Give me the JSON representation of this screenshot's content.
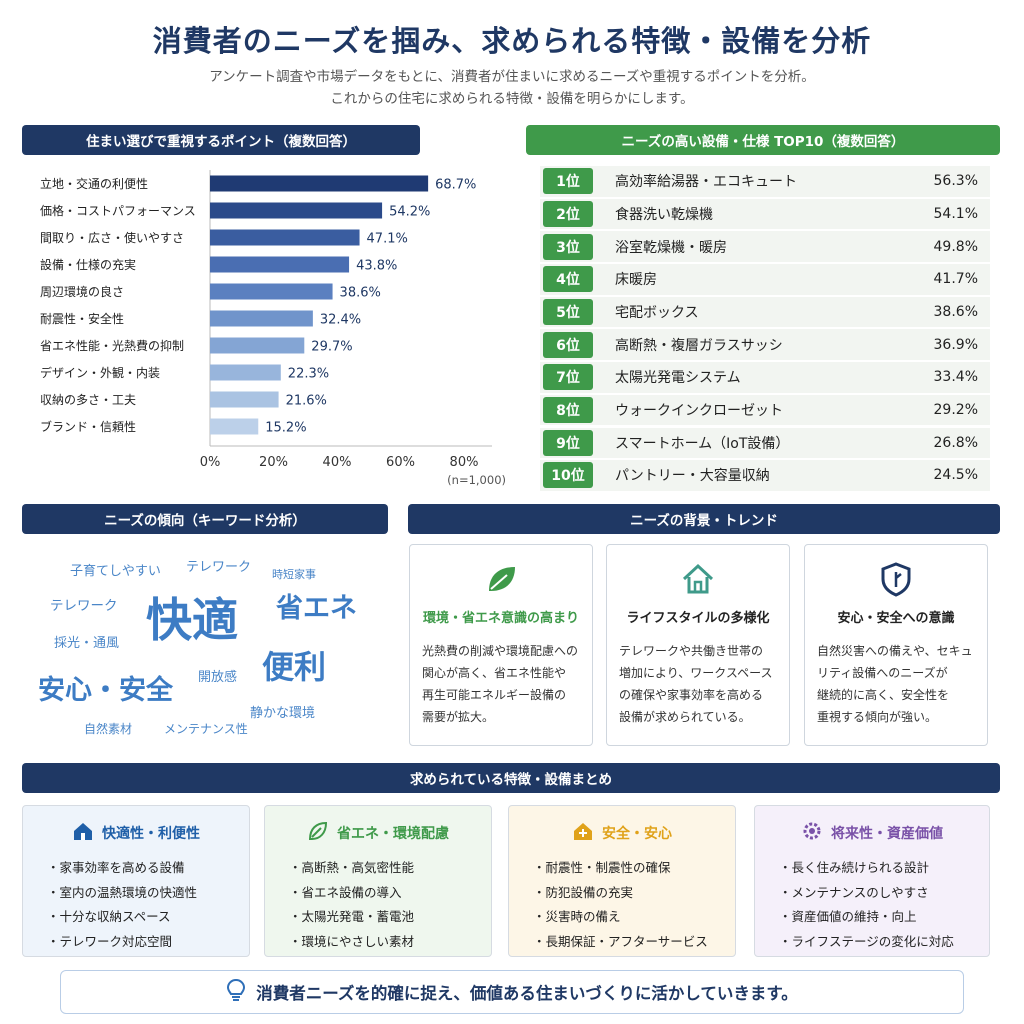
{
  "header": {
    "title": "消費者のニーズを掴み、求められる特徴・設備を分析",
    "subtitle_line1": "アンケート調査や市場データをもとに、消費者が住まいに求めるニーズや重視するポイントを分析。",
    "subtitle_line2": "これからの住宅に求められる特徴・設備を明らかにします。"
  },
  "sections": {
    "bar_title": "住まい選びで重視するポイント（複数回答）",
    "rank_title": "ニーズの高い設備・仕様 TOP10（複数回答）",
    "cloud_title": "ニーズの傾向（キーワード分析）",
    "trend_title": "ニーズの背景・トレンド",
    "summary_title": "求められている特徴・設備まとめ"
  },
  "chart_data": {
    "type": "bar",
    "orientation": "horizontal",
    "categories": [
      "立地・交通の利便性",
      "価格・コストパフォーマンス",
      "間取り・広さ・使いやすさ",
      "設備・仕様の充実",
      "周辺環境の良さ",
      "耐震性・安全性",
      "省エネ性能・光熱費の抑制",
      "デザイン・外観・内装",
      "収納の多さ・工夫",
      "ブランド・信頼性"
    ],
    "values": [
      68.7,
      54.2,
      47.1,
      43.8,
      38.6,
      32.4,
      29.7,
      22.3,
      21.6,
      15.2
    ],
    "value_labels": [
      "68.7%",
      "54.2%",
      "47.1%",
      "43.8%",
      "38.6%",
      "32.4%",
      "29.7%",
      "22.3%",
      "21.6%",
      "15.2%"
    ],
    "x_ticks": [
      "0%",
      "20%",
      "40%",
      "60%",
      "80%"
    ],
    "xlim": [
      0,
      80
    ],
    "note": "(n=1,000)",
    "bar_colors": [
      "#1f3a73",
      "#2b4a8a",
      "#3a5da0",
      "#4a6eb2",
      "#5b80c0",
      "#7094cb",
      "#84a5d4",
      "#98b5dc",
      "#aac3e2",
      "#bcd0e9"
    ]
  },
  "ranking": [
    {
      "rank": "1位",
      "name": "高効率給湯器・エコキュート",
      "value": "56.3%"
    },
    {
      "rank": "2位",
      "name": "食器洗い乾燥機",
      "value": "54.1%"
    },
    {
      "rank": "3位",
      "name": "浴室乾燥機・暖房",
      "value": "49.8%"
    },
    {
      "rank": "4位",
      "name": "床暖房",
      "value": "41.7%"
    },
    {
      "rank": "5位",
      "name": "宅配ボックス",
      "value": "38.6%"
    },
    {
      "rank": "6位",
      "name": "高断熱・複層ガラスサッシ",
      "value": "36.9%"
    },
    {
      "rank": "7位",
      "name": "太陽光発電システム",
      "value": "33.4%"
    },
    {
      "rank": "8位",
      "name": "ウォークインクローゼット",
      "value": "29.2%"
    },
    {
      "rank": "9位",
      "name": "スマートホーム（IoT設備）",
      "value": "26.8%"
    },
    {
      "rank": "10位",
      "name": "パントリー・大容量収納",
      "value": "24.5%"
    }
  ],
  "cloud": {
    "w1": "子育てしやすい",
    "w2": "テレワーク",
    "w3": "時短家事",
    "w4": "テレワーク",
    "w5": "快適",
    "w6": "省エネ",
    "w7": "採光・通風",
    "w8": "便利",
    "w9": "開放感",
    "w10": "安心・安全",
    "w11": "静かな環境",
    "w12": "自然素材",
    "w13": "メンテナンス性"
  },
  "trends": [
    {
      "icon": "leaf-icon",
      "title": "環境・省エネ意識の高まり",
      "color": "#3f9a4a",
      "lines": [
        "光熱費の削減や環境配慮への",
        "関心が高く、省エネ性能や",
        "再生可能エネルギー設備の",
        "需要が拡大。"
      ]
    },
    {
      "icon": "house-icon",
      "title": "ライフスタイルの多様化",
      "color": "#222222",
      "lines": [
        "テレワークや共働き世帯の",
        "増加により、ワークスペース",
        "の確保や家事効率を高める",
        "設備が求められている。"
      ]
    },
    {
      "icon": "shield-icon",
      "title": "安心・安全への意識",
      "color": "#222222",
      "lines": [
        "自然災害への備えや、セキュ",
        "リティ設備へのニーズが",
        "継続的に高く、安全性を",
        "重視する傾向が強い。"
      ]
    }
  ],
  "summary": [
    {
      "icon": "home-icon",
      "title": "快適性・利便性",
      "color": "#1f5fa8",
      "bg": "#eef4fb",
      "items": [
        "家事効率を高める設備",
        "室内の温熱環境の快適性",
        "十分な収納スペース",
        "テレワーク対応空間"
      ]
    },
    {
      "icon": "leaf-icon",
      "title": "省エネ・環境配慮",
      "color": "#3f9a4a",
      "bg": "#eff7ee",
      "items": [
        "高断熱・高気密性能",
        "省エネ設備の導入",
        "太陽光発電・蓄電池",
        "環境にやさしい素材"
      ]
    },
    {
      "icon": "safety-house-icon",
      "title": "安全・安心",
      "color": "#e0a21a",
      "bg": "#fdf6e7",
      "items": [
        "耐震性・制震性の確保",
        "防犯設備の充実",
        "災害時の備え",
        "長期保証・アフターサービス"
      ]
    },
    {
      "icon": "gear-icon",
      "title": "将来性・資産価値",
      "color": "#7a52a8",
      "bg": "#f5f0fa",
      "items": [
        "長く住み続けられる設計",
        "メンテナンスのしやすさ",
        "資産価値の維持・向上",
        "ライフステージの変化に対応"
      ]
    }
  ],
  "footer": {
    "icon": "lightbulb-icon",
    "text": "消費者ニーズを的確に捉え、価値ある住まいづくりに活かしていきます。"
  }
}
